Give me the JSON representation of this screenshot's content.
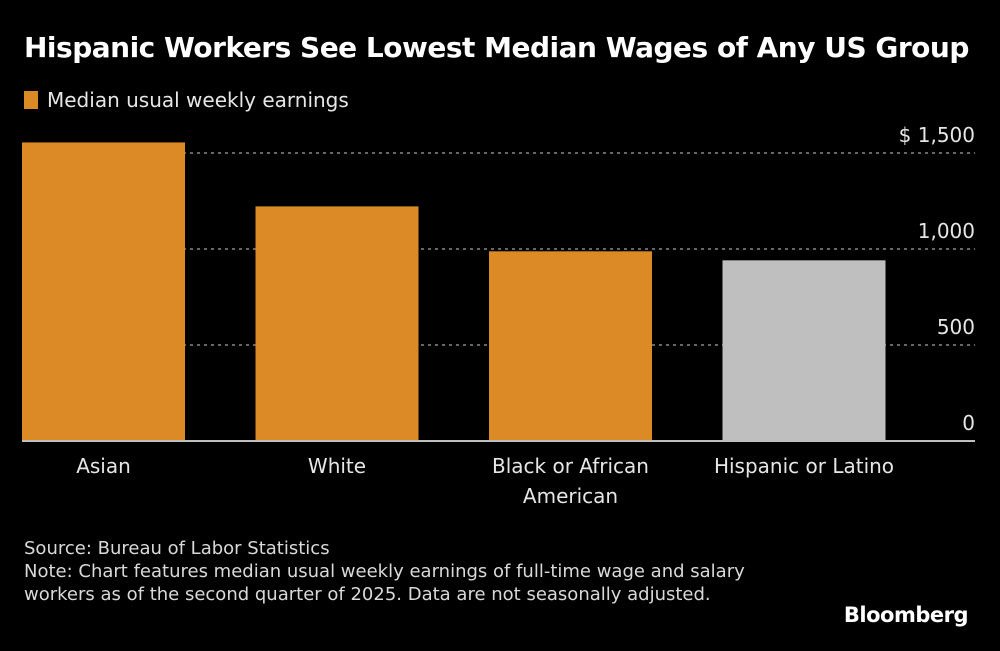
{
  "title": "Hispanic Workers See Lowest Median Wages of Any US Group",
  "legend": {
    "label": "Median usual weekly earnings",
    "color": "#dc8a26"
  },
  "source": "Source: Bureau of Labor Statistics",
  "note": "Note: Chart features median usual weekly earnings of full-time wage and salary workers as of the second quarter of 2025. Data are not seasonally adjusted.",
  "brand": "Bloomberg",
  "colors": {
    "background": "#000000",
    "primary": "#dc8a26",
    "highlight": "#bfbfbf",
    "grid": "#888888",
    "axis": "#bfbfbf"
  },
  "chart_data": {
    "type": "bar",
    "title": "Hispanic Workers See Lowest Median Wages of Any US Group",
    "xlabel": "",
    "ylabel": "",
    "categories": [
      "Asian",
      "White",
      "Black or African American",
      "Hispanic or Latino"
    ],
    "category_lines": [
      [
        "Asian"
      ],
      [
        "White"
      ],
      [
        "Black or African",
        "American"
      ],
      [
        "Hispanic or Latino"
      ]
    ],
    "series": [
      {
        "name": "Median usual weekly earnings",
        "values": [
          1555,
          1222,
          988,
          941
        ]
      }
    ],
    "highlight_index": 3,
    "ylim": [
      0,
      1500
    ],
    "yticks": [
      0,
      500,
      1000,
      1500
    ],
    "ytick_labels": [
      "0",
      "500",
      "1,000",
      "$ 1,500"
    ],
    "grid": true,
    "y_axis_side": "right",
    "legend_position": "top-left"
  }
}
